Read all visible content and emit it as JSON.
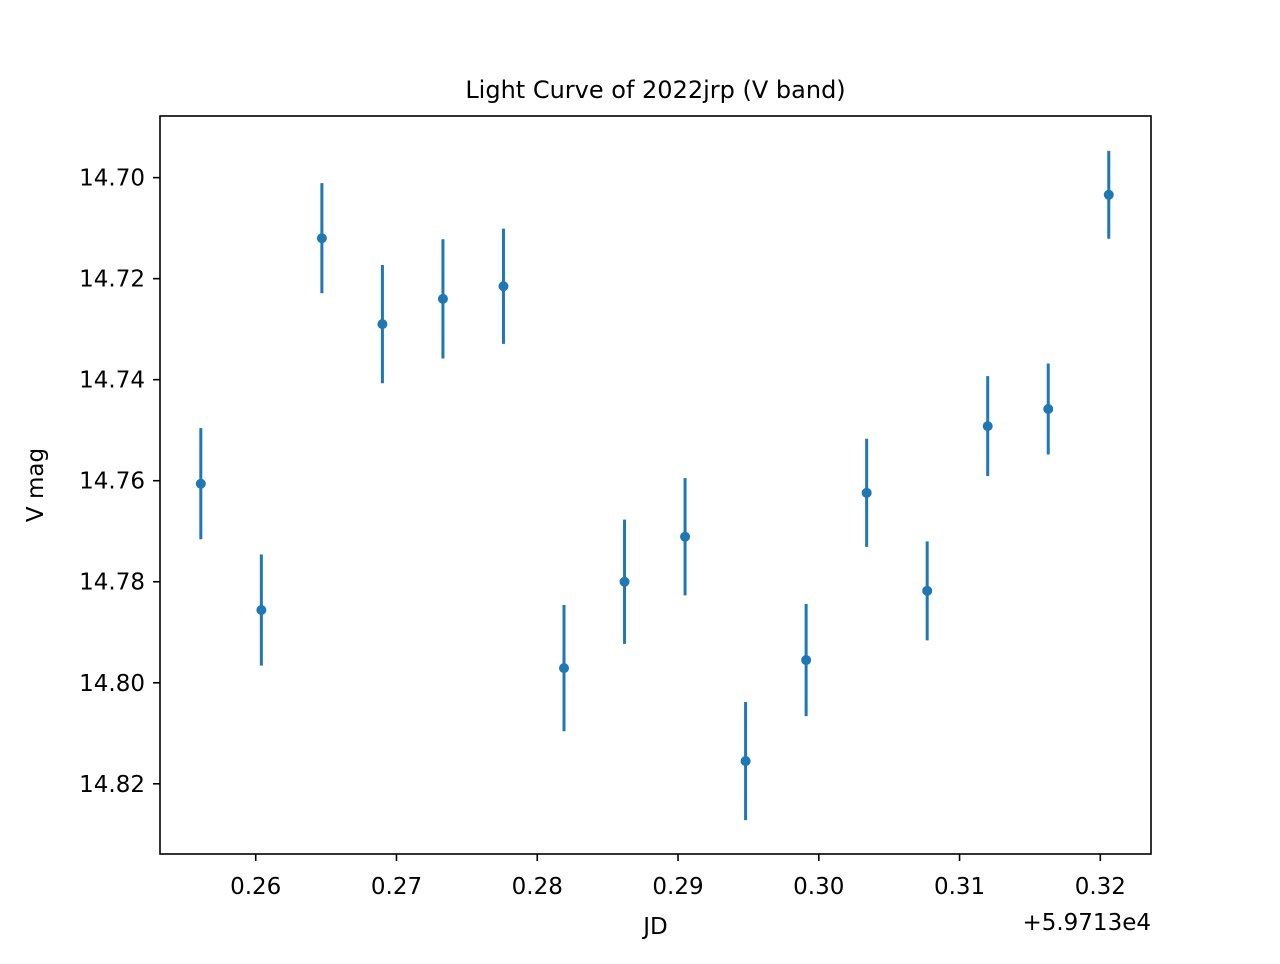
{
  "chart_data": {
    "type": "scatter",
    "title": "Light Curve of 2022jrp (V band)",
    "xlabel": "JD",
    "ylabel": "V mag",
    "x_offset_label": "+5.9713e4",
    "xlim": [
      0.2532,
      0.3236
    ],
    "ylim": [
      14.8339,
      14.6878
    ],
    "y_inverted": true,
    "x_ticks": [
      0.26,
      0.27,
      0.28,
      0.29,
      0.3,
      0.31,
      0.32
    ],
    "x_tick_labels": [
      "0.26",
      "0.27",
      "0.28",
      "0.29",
      "0.30",
      "0.31",
      "0.32"
    ],
    "y_ticks": [
      14.7,
      14.72,
      14.74,
      14.76,
      14.78,
      14.8,
      14.82
    ],
    "y_tick_labels": [
      "14.70",
      "14.72",
      "14.74",
      "14.76",
      "14.78",
      "14.80",
      "14.82"
    ],
    "grid": false,
    "color": "#1f77b4",
    "series": [
      {
        "x": [
          0.2561,
          0.2604,
          0.2647,
          0.269,
          0.2733,
          0.2776,
          0.2819,
          0.2862,
          0.2905,
          0.2948,
          0.2991,
          0.3034,
          0.3077,
          0.312,
          0.3163,
          0.3206
        ],
        "y": [
          14.7606,
          14.7856,
          14.712,
          14.729,
          14.724,
          14.7215,
          14.7971,
          14.78,
          14.7711,
          14.8155,
          14.7955,
          14.7624,
          14.7818,
          14.7492,
          14.7458,
          14.7034
        ],
        "yerr": [
          0.011,
          0.011,
          0.0109,
          0.0117,
          0.0118,
          0.0114,
          0.0125,
          0.0123,
          0.0116,
          0.0117,
          0.0111,
          0.0107,
          0.0098,
          0.0099,
          0.009,
          0.0087
        ]
      }
    ]
  }
}
